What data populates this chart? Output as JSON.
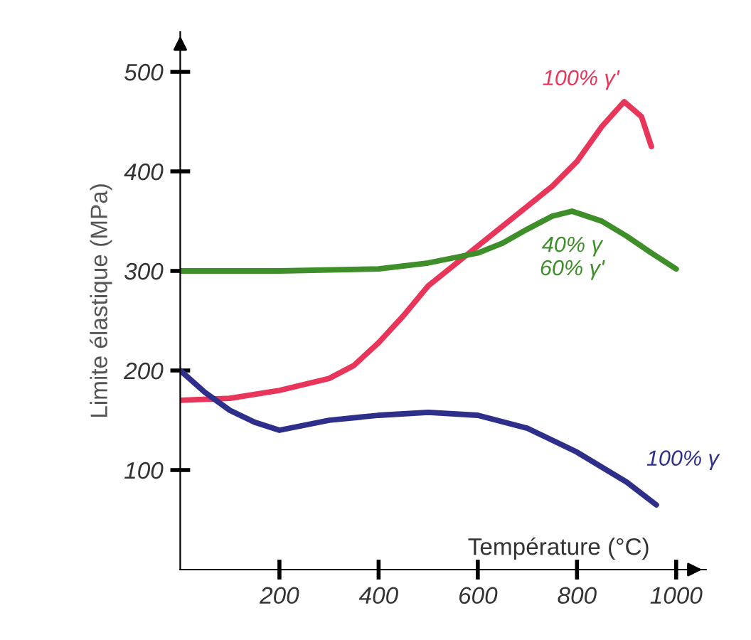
{
  "chart_data": {
    "type": "line",
    "xlabel": "Température (°C)",
    "ylabel": "Limite élastique (MPa)",
    "xlim": [
      0,
      1060
    ],
    "ylim": [
      0,
      540
    ],
    "xticks": [
      200,
      400,
      600,
      800,
      1000
    ],
    "yticks": [
      100,
      200,
      300,
      400,
      500
    ],
    "grid": false,
    "legend": false,
    "marker": "none",
    "line_style": "solid",
    "series": [
      {
        "name": "100% γ'",
        "color": "#e8355a",
        "x": [
          0,
          100,
          200,
          300,
          350,
          400,
          450,
          500,
          575,
          650,
          700,
          750,
          800,
          850,
          895,
          930,
          950
        ],
        "values": [
          170,
          172,
          180,
          192,
          205,
          228,
          255,
          285,
          315,
          345,
          365,
          385,
          410,
          445,
          470,
          455,
          425
        ]
      },
      {
        "name": "40% γ\n60% γ'",
        "color": "#3e8e2a",
        "x": [
          0,
          200,
          400,
          500,
          600,
          650,
          700,
          750,
          790,
          850,
          900,
          950,
          1000
        ],
        "values": [
          300,
          300,
          302,
          308,
          318,
          328,
          342,
          355,
          360,
          350,
          335,
          318,
          302
        ]
      },
      {
        "name": "100% γ",
        "color": "#2e2f8a",
        "x": [
          0,
          50,
          100,
          150,
          200,
          300,
          400,
          500,
          600,
          700,
          800,
          900,
          960
        ],
        "values": [
          200,
          178,
          160,
          148,
          140,
          150,
          155,
          158,
          155,
          142,
          118,
          88,
          65
        ]
      }
    ]
  }
}
